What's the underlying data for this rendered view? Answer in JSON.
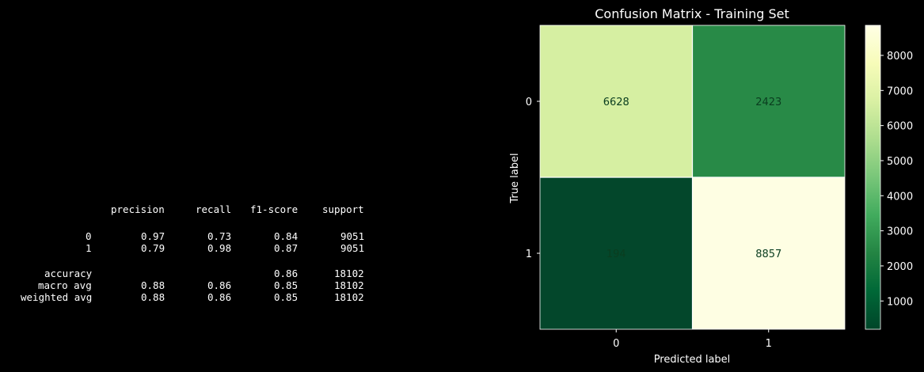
{
  "report": {
    "headers": [
      "precision",
      "recall",
      "f1-score",
      "support"
    ],
    "rows": [
      {
        "label": "0",
        "values": [
          "0.97",
          "0.73",
          "0.84",
          "9051"
        ]
      },
      {
        "label": "1",
        "values": [
          "0.79",
          "0.98",
          "0.87",
          "9051"
        ]
      },
      {
        "label": "accuracy",
        "values": [
          "",
          "",
          "0.86",
          "18102"
        ]
      },
      {
        "label": "macro avg",
        "values": [
          "0.88",
          "0.86",
          "0.85",
          "18102"
        ]
      },
      {
        "label": "weighted avg",
        "values": [
          "0.88",
          "0.86",
          "0.85",
          "18102"
        ]
      }
    ]
  },
  "chart_data": {
    "type": "heatmap",
    "title": "Confusion Matrix - Training Set",
    "xlabel": "Predicted label",
    "ylabel": "True label",
    "x_categories": [
      "0",
      "1"
    ],
    "y_categories": [
      "0",
      "1"
    ],
    "values": [
      [
        6628,
        2423
      ],
      [
        194,
        8857
      ]
    ],
    "colormap": "YlGn_r",
    "colorbar": {
      "range": [
        194,
        8857
      ],
      "ticks": [
        1000,
        2000,
        3000,
        4000,
        5000,
        6000,
        7000,
        8000
      ]
    },
    "colors": {
      "cell_0_0": "#d6efa2",
      "cell_0_1": "#288a47",
      "cell_1_0": "#03472b",
      "cell_1_1": "#fefee3",
      "dark_text": "#0a3d1f",
      "light_text": "#ffffff"
    }
  }
}
